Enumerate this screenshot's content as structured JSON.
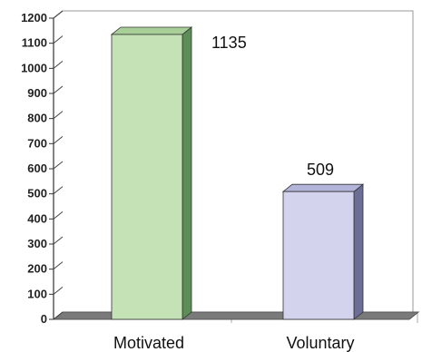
{
  "chart_data": {
    "type": "bar",
    "style": "3d",
    "categories": [
      "Motivated",
      "Voluntary"
    ],
    "values": [
      1135,
      509
    ],
    "data_labels": [
      "1135",
      "509"
    ],
    "ylim": [
      0,
      1200
    ],
    "yticks": [
      0,
      100,
      200,
      300,
      400,
      500,
      600,
      700,
      800,
      900,
      1000,
      1100,
      1200
    ],
    "title": "",
    "xlabel": "",
    "ylabel": "",
    "grid": false,
    "legend": "none",
    "colors": {
      "bars": [
        {
          "front": "#c4e2b6",
          "side": "#5e8e58",
          "top": "#a9cf98"
        },
        {
          "front": "#d3d3ee",
          "side": "#6c6e96",
          "top": "#b3b4da"
        }
      ],
      "floor": "#7a7a7a",
      "floor_edge": "#555555",
      "wall_border": "#9a9a9a"
    }
  }
}
